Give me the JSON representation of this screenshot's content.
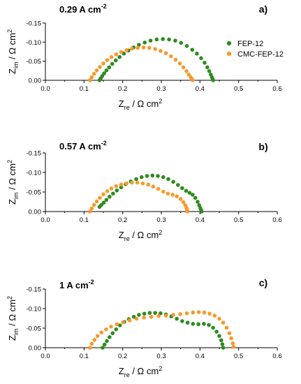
{
  "colors": {
    "FEP-12": "#2e8b1f",
    "CMC-FEP-12": "#f59a2d"
  },
  "legend": [
    "FEP-12",
    "CMC-FEP-12"
  ],
  "chart_data": [
    {
      "type": "scatter",
      "title": "0.29 A cm",
      "title_sup": "-2",
      "panel_label": "a)",
      "xlabel_main": "Z",
      "xlabel_sub": "re",
      "xlabel_unit": " / Ω cm",
      "xlabel_sup": "2",
      "ylabel_main": "Z",
      "ylabel_sub": "im",
      "ylabel_unit": " / Ω cm",
      "ylabel_sup": "2",
      "xlim": [
        0.0,
        0.6
      ],
      "ylim": [
        0.0,
        -0.15
      ],
      "inverted_y": true,
      "xticks": [
        "0.0",
        "0.1",
        "0.2",
        "0.3",
        "0.4",
        "0.5",
        "0.6"
      ],
      "yticks": [
        "0.00",
        "-0.05",
        "-0.10",
        "-0.15"
      ],
      "legend_position": "top-right",
      "series": [
        {
          "name": "FEP-12",
          "x": [
            0.14,
            0.143,
            0.147,
            0.152,
            0.158,
            0.165,
            0.173,
            0.182,
            0.192,
            0.203,
            0.215,
            0.228,
            0.242,
            0.257,
            0.272,
            0.288,
            0.304,
            0.32,
            0.336,
            0.351,
            0.366,
            0.38,
            0.392,
            0.403,
            0.412,
            0.419,
            0.424,
            0.428,
            0.431,
            0.433,
            0.434
          ],
          "y": [
            0.0,
            -0.005,
            -0.011,
            -0.018,
            -0.026,
            -0.034,
            -0.043,
            -0.052,
            -0.061,
            -0.07,
            -0.078,
            -0.086,
            -0.093,
            -0.099,
            -0.104,
            -0.107,
            -0.108,
            -0.107,
            -0.104,
            -0.098,
            -0.09,
            -0.08,
            -0.07,
            -0.058,
            -0.046,
            -0.034,
            -0.024,
            -0.015,
            -0.008,
            -0.003,
            0.0
          ]
        },
        {
          "name": "CMC-FEP-12",
          "x": [
            0.115,
            0.12,
            0.126,
            0.133,
            0.141,
            0.15,
            0.16,
            0.171,
            0.183,
            0.196,
            0.21,
            0.224,
            0.239,
            0.254,
            0.269,
            0.284,
            0.298,
            0.312,
            0.325,
            0.337,
            0.348,
            0.357,
            0.365,
            0.371,
            0.376,
            0.379,
            0.381
          ],
          "y": [
            0.0,
            -0.008,
            -0.017,
            -0.026,
            -0.035,
            -0.044,
            -0.053,
            -0.061,
            -0.068,
            -0.074,
            -0.079,
            -0.083,
            -0.085,
            -0.086,
            -0.085,
            -0.082,
            -0.077,
            -0.071,
            -0.063,
            -0.054,
            -0.044,
            -0.034,
            -0.024,
            -0.015,
            -0.008,
            -0.003,
            0.0
          ]
        }
      ]
    },
    {
      "type": "scatter",
      "title": "0.57 A cm",
      "title_sup": "-2",
      "panel_label": "b)",
      "xlabel_main": "Z",
      "xlabel_sub": "re",
      "xlabel_unit": " / Ω cm",
      "xlabel_sup": "2",
      "ylabel_main": "Z",
      "ylabel_sub": "im",
      "ylabel_unit": " / Ω cm",
      "ylabel_sup": "2",
      "xlim": [
        0.0,
        0.6
      ],
      "ylim": [
        0.0,
        -0.15
      ],
      "inverted_y": true,
      "xticks": [
        "0.0",
        "0.1",
        "0.2",
        "0.3",
        "0.4",
        "0.5",
        "0.6"
      ],
      "yticks": [
        "0.00",
        "-0.05",
        "-0.10",
        "-0.15"
      ],
      "series": [
        {
          "name": "FEP-12",
          "x": [
            0.14,
            0.145,
            0.151,
            0.158,
            0.166,
            0.175,
            0.185,
            0.196,
            0.208,
            0.221,
            0.235,
            0.249,
            0.263,
            0.277,
            0.291,
            0.305,
            0.318,
            0.331,
            0.343,
            0.354,
            0.364,
            0.373,
            0.381,
            0.388,
            0.394,
            0.398,
            0.401,
            0.403,
            0.404
          ],
          "y": [
            -0.012,
            -0.017,
            -0.023,
            -0.03,
            -0.038,
            -0.046,
            -0.054,
            -0.062,
            -0.07,
            -0.077,
            -0.083,
            -0.088,
            -0.091,
            -0.092,
            -0.091,
            -0.088,
            -0.083,
            -0.076,
            -0.068,
            -0.06,
            -0.053,
            -0.048,
            -0.043,
            -0.035,
            -0.025,
            -0.016,
            -0.009,
            -0.004,
            0.0
          ]
        },
        {
          "name": "CMC-FEP-12",
          "x": [
            0.115,
            0.12,
            0.126,
            0.133,
            0.141,
            0.15,
            0.16,
            0.171,
            0.183,
            0.196,
            0.21,
            0.224,
            0.238,
            0.252,
            0.266,
            0.279,
            0.292,
            0.305,
            0.317,
            0.329,
            0.34,
            0.35,
            0.357,
            0.362,
            0.365,
            0.367,
            0.368
          ],
          "y": [
            0.0,
            -0.008,
            -0.017,
            -0.026,
            -0.035,
            -0.044,
            -0.052,
            -0.059,
            -0.065,
            -0.069,
            -0.072,
            -0.074,
            -0.074,
            -0.072,
            -0.069,
            -0.064,
            -0.058,
            -0.051,
            -0.046,
            -0.043,
            -0.039,
            -0.032,
            -0.024,
            -0.016,
            -0.009,
            -0.004,
            0.0
          ]
        }
      ]
    },
    {
      "type": "scatter",
      "title": "1 A cm",
      "title_sup": "-2",
      "panel_label": "c)",
      "xlabel_main": "Z",
      "xlabel_sub": "re",
      "xlabel_unit": " / Ω cm",
      "xlabel_sup": "2",
      "ylabel_main": "Z",
      "ylabel_sub": "im",
      "ylabel_unit": " / Ω cm",
      "ylabel_sup": "2",
      "xlim": [
        0.0,
        0.6
      ],
      "ylim": [
        0.0,
        -0.15
      ],
      "inverted_y": true,
      "xticks": [
        "0.0",
        "0.1",
        "0.2",
        "0.3",
        "0.4",
        "0.5",
        "0.6"
      ],
      "yticks": [
        "0.00",
        "-0.05",
        "-0.10",
        "-0.15"
      ],
      "series": [
        {
          "name": "FEP-12",
          "x": [
            0.148,
            0.153,
            0.159,
            0.166,
            0.174,
            0.183,
            0.193,
            0.204,
            0.216,
            0.229,
            0.242,
            0.256,
            0.27,
            0.284,
            0.298,
            0.312,
            0.326,
            0.34,
            0.354,
            0.368,
            0.382,
            0.396,
            0.41,
            0.423,
            0.434,
            0.443,
            0.45,
            0.455,
            0.458,
            0.46
          ],
          "y": [
            0.0,
            -0.008,
            -0.017,
            -0.027,
            -0.037,
            -0.047,
            -0.057,
            -0.066,
            -0.073,
            -0.079,
            -0.084,
            -0.087,
            -0.089,
            -0.089,
            -0.088,
            -0.085,
            -0.08,
            -0.074,
            -0.068,
            -0.064,
            -0.061,
            -0.06,
            -0.061,
            -0.058,
            -0.051,
            -0.041,
            -0.03,
            -0.019,
            -0.009,
            0.0
          ]
        },
        {
          "name": "CMC-FEP-12",
          "x": [
            0.115,
            0.12,
            0.127,
            0.135,
            0.145,
            0.157,
            0.17,
            0.185,
            0.201,
            0.218,
            0.236,
            0.255,
            0.274,
            0.293,
            0.312,
            0.331,
            0.349,
            0.366,
            0.382,
            0.397,
            0.411,
            0.425,
            0.438,
            0.45,
            0.46,
            0.469,
            0.476,
            0.481,
            0.485,
            0.487
          ],
          "y": [
            0.0,
            -0.01,
            -0.02,
            -0.03,
            -0.039,
            -0.047,
            -0.054,
            -0.06,
            -0.065,
            -0.07,
            -0.074,
            -0.077,
            -0.079,
            -0.081,
            -0.082,
            -0.084,
            -0.086,
            -0.088,
            -0.09,
            -0.091,
            -0.09,
            -0.087,
            -0.082,
            -0.074,
            -0.064,
            -0.051,
            -0.037,
            -0.024,
            -0.011,
            -0.002
          ]
        }
      ]
    }
  ]
}
